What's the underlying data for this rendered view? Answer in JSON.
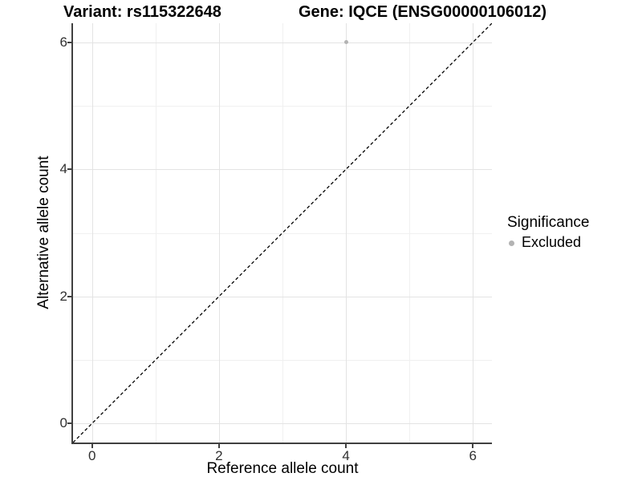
{
  "titles": {
    "variant": "Variant: rs115322648",
    "gene": "Gene: IQCE (ENSG00000106012)"
  },
  "legend": {
    "title": "Significance",
    "items": [
      {
        "label": "Excluded",
        "color": "#b3b3b3"
      }
    ]
  },
  "chart_data": {
    "type": "scatter",
    "title": "Variant: rs115322648 — Gene: IQCE (ENSG00000106012)",
    "xlabel": "Reference allele count",
    "ylabel": "Alternative allele count",
    "xlim": [
      -0.3,
      6.3
    ],
    "ylim": [
      -0.3,
      6.3
    ],
    "x_ticks": [
      0,
      2,
      4,
      6
    ],
    "y_ticks": [
      0,
      2,
      4,
      6
    ],
    "x_minor_ticks": [
      1,
      3,
      5
    ],
    "y_minor_ticks": [
      1,
      3,
      5
    ],
    "grid": true,
    "legend_position": "right",
    "series": [
      {
        "name": "Excluded",
        "points": [
          {
            "x": 4,
            "y": 6
          }
        ],
        "color": "#b3b3b3"
      }
    ],
    "abline": {
      "slope": 1,
      "intercept": 0,
      "style": "dashed",
      "color": "#000000"
    },
    "colors": {
      "grid_major": "#e3e3e3",
      "grid_minor": "#f0f0f0",
      "axis_line": "#404040",
      "tick_text": "#303030"
    }
  }
}
